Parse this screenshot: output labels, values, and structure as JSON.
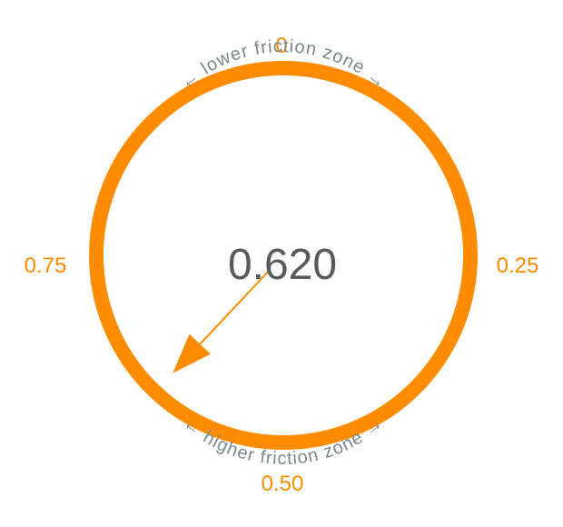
{
  "dial": {
    "value": 0.62,
    "value_text": "0.620",
    "range": [
      0,
      1
    ],
    "direction": "clockwise",
    "zero_position": "top",
    "tick_labels": {
      "top": "0",
      "right": "0.25",
      "bottom": "0.50",
      "left": "0.75"
    },
    "zone_labels": {
      "upper": "← lower friction zone →",
      "lower": "← higher friction zone →"
    }
  },
  "colors": {
    "accent": "#ff8c00",
    "text": "#5a5a5a",
    "zone_text": "#7a8a8a"
  }
}
